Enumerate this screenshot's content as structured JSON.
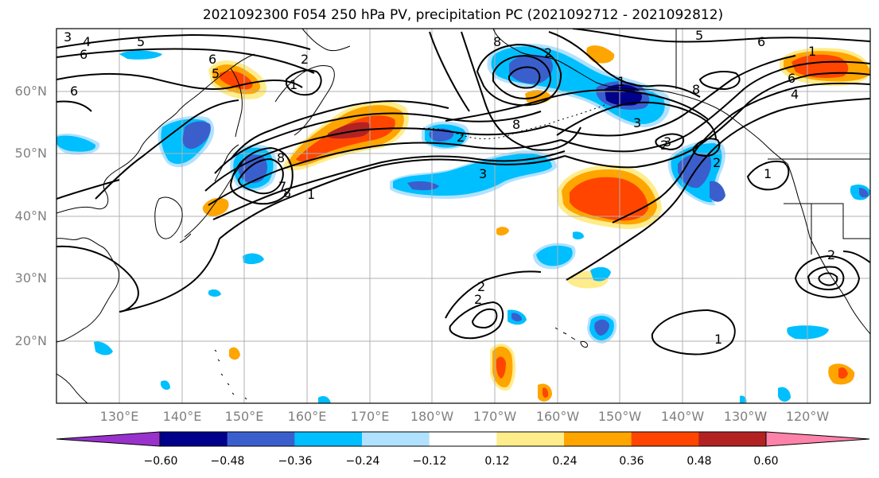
{
  "title": "2021092300 F054 250 hPa PV, precipitation PC (2021092712 - 2021092812)",
  "map": {
    "lat_labels": [
      "20°N",
      "30°N",
      "40°N",
      "50°N",
      "60°N"
    ],
    "lon_labels": [
      "130°E",
      "140°E",
      "150°E",
      "160°E",
      "170°E",
      "180°W",
      "170°W",
      "160°W",
      "150°W",
      "140°W",
      "130°W",
      "120°W"
    ],
    "contour_labels": [
      "3",
      "4",
      "5",
      "6",
      "2",
      "1",
      "6",
      "6",
      "5",
      "6",
      "1",
      "5",
      "8",
      "2",
      "1",
      "8",
      "8",
      "3",
      "2",
      "8",
      "7",
      "8",
      "3",
      "1",
      "2",
      "2",
      "3",
      "1",
      "2",
      "2",
      "6",
      "2",
      "4",
      "1"
    ]
  },
  "colorbar": {
    "ticks": [
      "−0.60",
      "−0.48",
      "−0.36",
      "−0.24",
      "−0.12",
      "0.12",
      "0.24",
      "0.36",
      "0.48",
      "0.60"
    ],
    "colors": [
      "#9932cc",
      "#00008b",
      "#3a5fcd",
      "#00bfff",
      "#b0e2ff",
      "#ffffff",
      "#ffec8b",
      "#ffa500",
      "#ff4500",
      "#b22222",
      "#ff82ab"
    ]
  }
}
